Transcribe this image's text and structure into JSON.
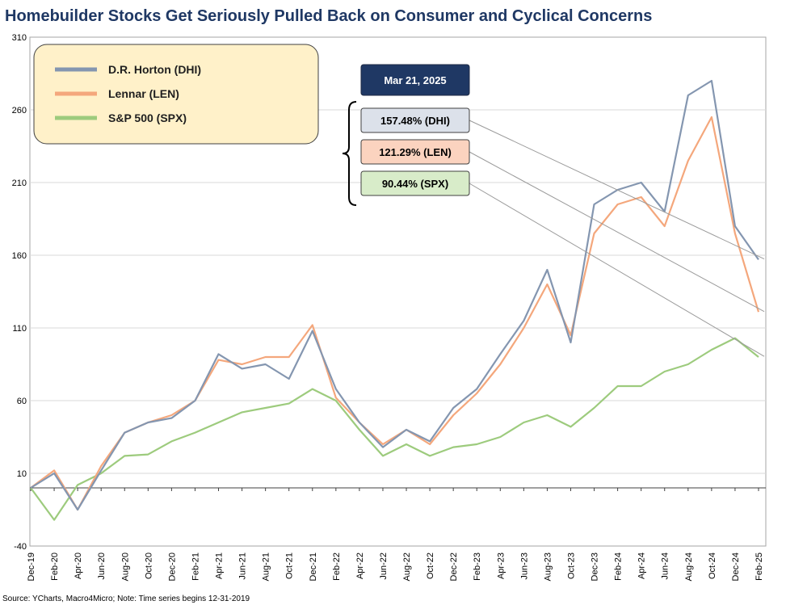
{
  "chart_data": {
    "type": "line",
    "title": "Homebuilder Stocks Get Seriously Pulled Back on Consumer and Cyclical Concerns",
    "source": "Source: YCharts, Macro4Micro; Note: Time series begins 12-31-2019",
    "ylim": [
      -40,
      310
    ],
    "y_ticks": [
      "310",
      "260",
      "210",
      "160",
      "110",
      "60",
      "10",
      "-40"
    ],
    "y_tick_values": [
      310,
      260,
      210,
      160,
      110,
      60,
      10,
      -40
    ],
    "baseline": 0,
    "grid": "horizontal",
    "legend_placement": "top-left",
    "x": [
      "Dec-19",
      "Feb-20",
      "Apr-20",
      "Jun-20",
      "Aug-20",
      "Oct-20",
      "Dec-20",
      "Feb-21",
      "Apr-21",
      "Jun-21",
      "Aug-21",
      "Oct-21",
      "Dec-21",
      "Feb-22",
      "Apr-22",
      "Jun-22",
      "Aug-22",
      "Oct-22",
      "Dec-22",
      "Feb-23",
      "Apr-23",
      "Jun-23",
      "Aug-23",
      "Oct-23",
      "Dec-23",
      "Feb-24",
      "Apr-24",
      "Jun-24",
      "Aug-24",
      "Oct-24",
      "Dec-24",
      "Feb-25"
    ],
    "series": [
      {
        "name": "S&P 500 (SPX)",
        "color": "#9dcb7d",
        "values": [
          0,
          -22,
          2,
          10,
          22,
          23,
          32,
          38,
          45,
          52,
          55,
          58,
          68,
          60,
          40,
          22,
          30,
          22,
          28,
          30,
          35,
          45,
          50,
          42,
          55,
          70,
          70,
          80,
          85,
          95,
          103,
          90
        ]
      },
      {
        "name": "Lennar (LEN)",
        "color": "#f4a77c",
        "values": [
          0,
          12,
          -15,
          15,
          38,
          45,
          50,
          60,
          88,
          85,
          90,
          90,
          112,
          62,
          45,
          30,
          40,
          30,
          50,
          65,
          85,
          110,
          140,
          105,
          175,
          195,
          200,
          180,
          225,
          255,
          175,
          121
        ]
      },
      {
        "name": "D.R. Horton (DHI)",
        "color": "#8496b0",
        "values": [
          0,
          10,
          -15,
          12,
          38,
          45,
          48,
          60,
          92,
          82,
          85,
          75,
          108,
          68,
          45,
          28,
          40,
          32,
          55,
          68,
          92,
          115,
          150,
          100,
          195,
          205,
          210,
          190,
          270,
          280,
          180,
          157
        ]
      }
    ],
    "endpoint_date": "Mar 21, 2025",
    "endpoint_labels": [
      {
        "text": "157.48% (DHI)",
        "value": 157.48,
        "fill": "#dce1ea"
      },
      {
        "text": "121.29% (LEN)",
        "value": 121.29,
        "fill": "#fbd3bf"
      },
      {
        "text": "90.44% (SPX)",
        "value": 90.44,
        "fill": "#d8ecc9"
      }
    ],
    "legend": [
      {
        "label": "D.R. Horton (DHI)",
        "color": "#8496b0"
      },
      {
        "label": "Lennar (LEN)",
        "color": "#f4a77c"
      },
      {
        "label": "S&P 500 (SPX)",
        "color": "#9dcb7d"
      }
    ],
    "colors": {
      "title": "#1f3864",
      "date_box": "#1f3864",
      "legend_box": "#fff1c9"
    }
  }
}
